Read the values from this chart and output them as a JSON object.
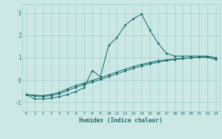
{
  "xlabel": "Humidex (Indice chaleur)",
  "background_color": "#cce8e4",
  "grid_color": "#99cccc",
  "line_color": "#1a6e6e",
  "xlim": [
    -0.5,
    23.5
  ],
  "ylim": [
    -1.4,
    3.4
  ],
  "xticks": [
    0,
    1,
    2,
    3,
    4,
    5,
    6,
    7,
    8,
    9,
    10,
    11,
    12,
    13,
    14,
    15,
    16,
    17,
    18,
    19,
    20,
    21,
    22,
    23
  ],
  "yticks": [
    -1,
    0,
    1,
    2,
    3
  ],
  "line1_x": [
    0,
    1,
    2,
    3,
    4,
    5,
    6,
    7,
    8,
    9,
    10,
    11,
    12,
    13,
    14,
    15,
    16,
    17,
    18,
    19,
    20,
    21,
    22,
    23
  ],
  "line1_y": [
    -0.65,
    -0.85,
    -0.85,
    -0.82,
    -0.75,
    -0.65,
    -0.52,
    -0.35,
    0.42,
    0.15,
    1.55,
    1.9,
    2.45,
    2.75,
    2.95,
    2.25,
    1.65,
    1.2,
    1.07,
    1.07,
    1.07,
    1.07,
    1.07,
    1.0
  ],
  "line2_x": [
    0,
    1,
    2,
    3,
    4,
    5,
    6,
    7,
    8,
    9,
    10,
    11,
    12,
    13,
    14,
    15,
    16,
    17,
    18,
    19,
    20,
    21,
    22,
    23
  ],
  "line2_y": [
    -0.65,
    -0.72,
    -0.74,
    -0.7,
    -0.62,
    -0.48,
    -0.33,
    -0.2,
    -0.1,
    0.02,
    0.15,
    0.28,
    0.4,
    0.52,
    0.63,
    0.72,
    0.8,
    0.87,
    0.92,
    0.96,
    1.0,
    1.02,
    1.02,
    0.93
  ],
  "line3_x": [
    0,
    1,
    2,
    3,
    4,
    5,
    6,
    7,
    8,
    9,
    10,
    11,
    12,
    13,
    14,
    15,
    16,
    17,
    18,
    19,
    20,
    21,
    22,
    23
  ],
  "line3_y": [
    -0.65,
    -0.68,
    -0.7,
    -0.65,
    -0.55,
    -0.4,
    -0.25,
    -0.14,
    -0.02,
    0.1,
    0.23,
    0.36,
    0.48,
    0.6,
    0.7,
    0.78,
    0.86,
    0.9,
    0.94,
    0.97,
    1.0,
    1.03,
    1.03,
    0.93
  ]
}
